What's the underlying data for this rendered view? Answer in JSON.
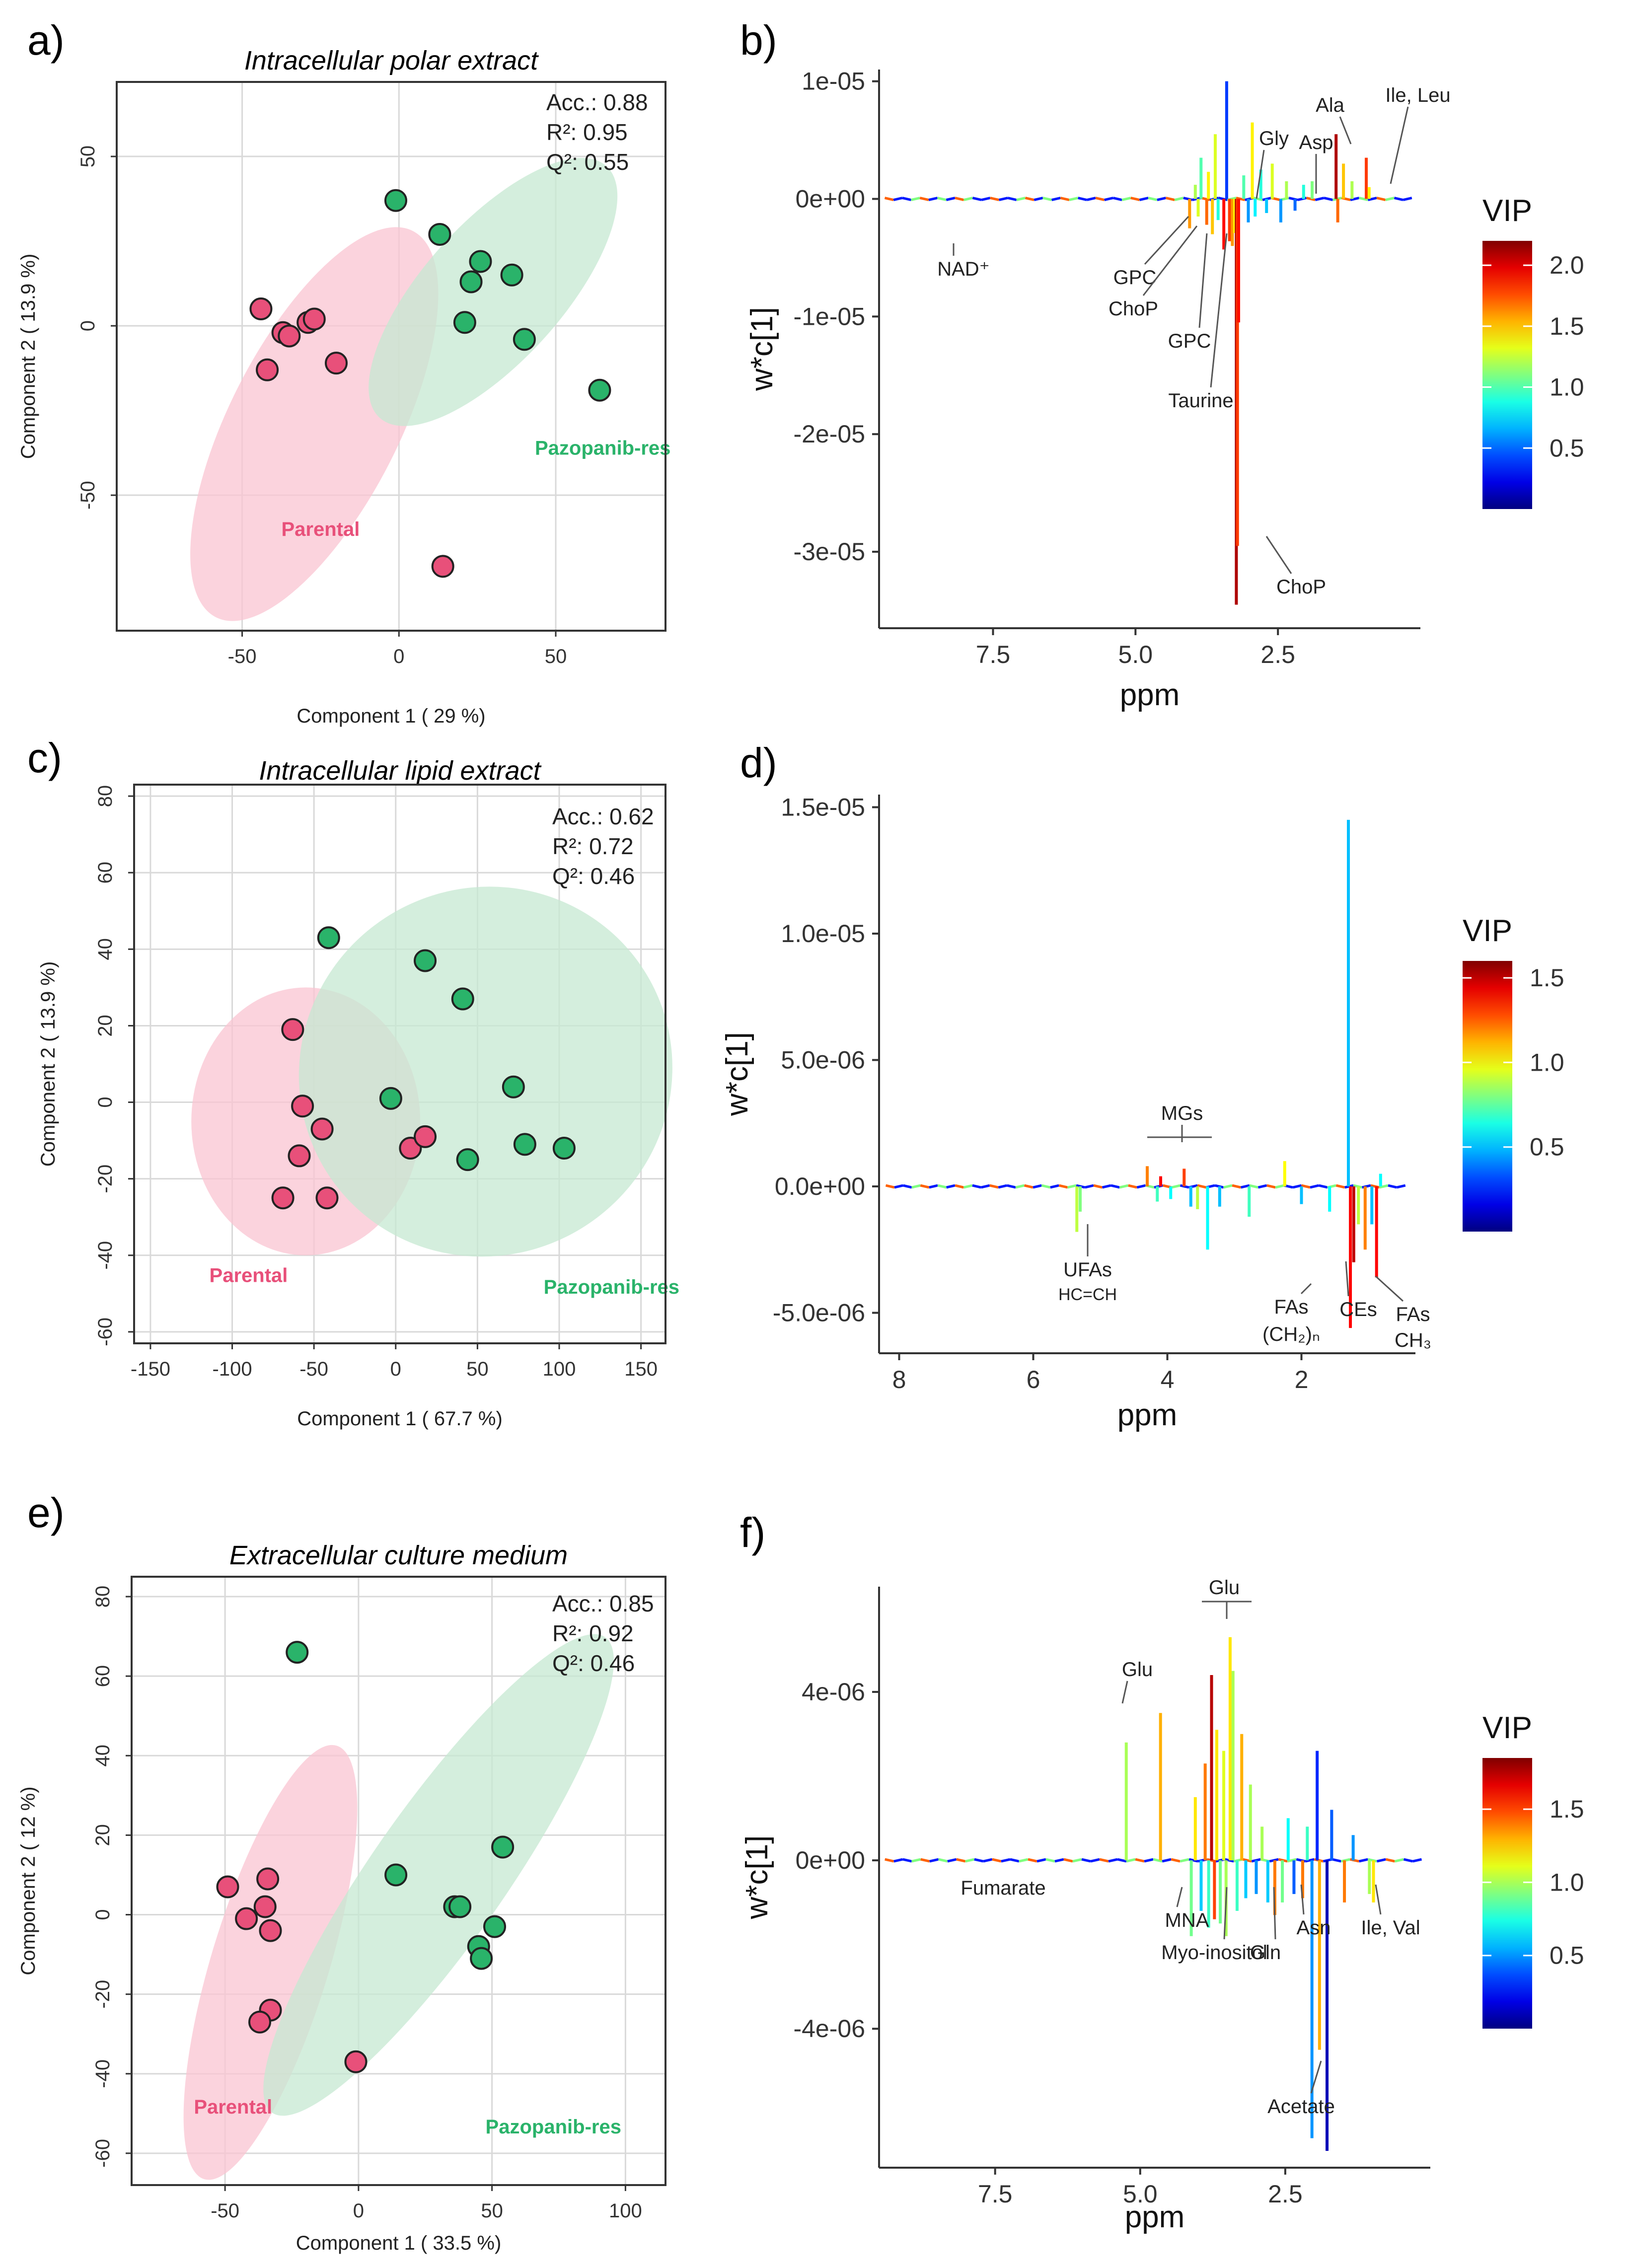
{
  "colors": {
    "parental": "#e8507a",
    "parental_ellipse": "#f9c4d2",
    "pazo": "#2ab36a",
    "pazo_ellipse": "#c6e8d2",
    "grid": "#d9d9d9"
  },
  "chart_data": [
    {
      "panel": "a)",
      "type": "scatter",
      "title": "Intracellular polar extract",
      "xlabel": "Component 1 ( 29 %)",
      "ylabel": "Component 2 ( 13.9 %)",
      "xlim": [
        -90,
        85
      ],
      "ylim": [
        -90,
        72
      ],
      "xticks": [
        -50,
        0,
        50
      ],
      "yticks": [
        -50,
        0,
        50
      ],
      "stats": [
        "Acc.: 0.88",
        "R²: 0.95",
        "Q²: 0.55"
      ],
      "groups": [
        {
          "name": "Parental",
          "label_at": [
            -25,
            -62
          ],
          "ellipse": {
            "cx": -27,
            "cy": -29,
            "rx": 27,
            "ry": 64,
            "angle_deg": 27
          },
          "points": [
            [
              -44,
              5
            ],
            [
              -37,
              -2
            ],
            [
              -35,
              -3
            ],
            [
              -29,
              1
            ],
            [
              -27,
              2
            ],
            [
              -20,
              -11
            ],
            [
              -42,
              -13
            ],
            [
              14,
              -71
            ]
          ]
        },
        {
          "name": "Pazopanib-res",
          "label_at": [
            65,
            -38
          ],
          "ellipse": {
            "cx": 30,
            "cy": 10,
            "rx": 22,
            "ry": 50,
            "angle_deg": 42
          },
          "points": [
            [
              -1,
              37
            ],
            [
              13,
              27
            ],
            [
              26,
              19
            ],
            [
              36,
              15
            ],
            [
              23,
              13
            ],
            [
              21,
              1
            ],
            [
              40,
              -4
            ],
            [
              64,
              -19
            ]
          ]
        }
      ]
    },
    {
      "panel": "b)",
      "type": "line",
      "xlabel": "ppm",
      "ylabel": "w*c[1]",
      "xlim": [
        9.5,
        0.0
      ],
      "ylim": [
        -3.65e-05,
        1.1e-05
      ],
      "xticks": [
        7.5,
        5.0,
        2.5
      ],
      "xtick_labels": [
        "7.5",
        "5.0",
        "2.5"
      ],
      "yticks": [
        1e-05,
        0,
        -1e-05,
        -2e-05,
        -3e-05
      ],
      "ytick_labels": [
        "1e-05",
        "0e+00",
        "-1e-05",
        "-2e-05",
        "-3e-05"
      ],
      "colorbar": {
        "title": "VIP",
        "max": 2.2,
        "ticks": [
          2.0,
          1.5,
          1.0,
          0.5
        ],
        "tick_labels": [
          "2.0",
          "1.5",
          "1.0",
          "0.5"
        ]
      },
      "peaks": [
        {
          "x": 4.05,
          "y": -2.5e-06,
          "v": 1.6
        },
        {
          "x": 3.95,
          "y": 1.2e-06,
          "v": 1.2
        },
        {
          "x": 3.9,
          "y": -1.5e-06,
          "v": 1.3
        },
        {
          "x": 3.85,
          "y": 3.5e-06,
          "v": 1.0
        },
        {
          "x": 3.75,
          "y": -2.2e-06,
          "v": 1.7
        },
        {
          "x": 3.72,
          "y": 2.3e-06,
          "v": 1.4
        },
        {
          "x": 3.65,
          "y": -3e-06,
          "v": 1.5
        },
        {
          "x": 3.6,
          "y": 5.5e-06,
          "v": 1.3
        },
        {
          "x": 3.55,
          "y": -1.8e-06,
          "v": 0.9
        },
        {
          "x": 3.45,
          "y": -4.3e-06,
          "v": 1.9
        },
        {
          "x": 3.4,
          "y": 1e-05,
          "v": 0.4
        },
        {
          "x": 3.35,
          "y": -3.6e-06,
          "v": 1.8
        },
        {
          "x": 3.3,
          "y": -4e-06,
          "v": 1.6
        },
        {
          "x": 3.26,
          "y": -2.9e-06,
          "v": 1.4
        },
        {
          "x": 3.23,
          "y": -3.45e-05,
          "v": 2.1
        },
        {
          "x": 3.21,
          "y": -2.95e-05,
          "v": 1.8
        },
        {
          "x": 3.19,
          "y": -1.05e-05,
          "v": 1.9
        },
        {
          "x": 3.1,
          "y": 2e-06,
          "v": 1.0
        },
        {
          "x": 3.02,
          "y": -2e-06,
          "v": 0.6
        },
        {
          "x": 2.95,
          "y": 6.5e-06,
          "v": 1.4
        },
        {
          "x": 2.9,
          "y": -1.5e-06,
          "v": 0.8
        },
        {
          "x": 2.8,
          "y": 2.5e-06,
          "v": 0.9
        },
        {
          "x": 2.7,
          "y": -1.2e-06,
          "v": 0.7
        },
        {
          "x": 2.6,
          "y": 3e-06,
          "v": 1.3
        },
        {
          "x": 2.45,
          "y": -2e-06,
          "v": 0.6
        },
        {
          "x": 2.35,
          "y": 1.5e-06,
          "v": 1.2
        },
        {
          "x": 2.2,
          "y": -1e-06,
          "v": 0.5
        },
        {
          "x": 2.05,
          "y": 1.2e-06,
          "v": 0.9
        },
        {
          "x": 1.9,
          "y": 1.5e-06,
          "v": 1.1
        },
        {
          "x": 1.48,
          "y": 5.5e-06,
          "v": 2.1
        },
        {
          "x": 1.45,
          "y": -2e-06,
          "v": 1.7
        },
        {
          "x": 1.35,
          "y": 3e-06,
          "v": 1.5
        },
        {
          "x": 1.2,
          "y": 1.5e-06,
          "v": 1.2
        },
        {
          "x": 0.95,
          "y": 3.5e-06,
          "v": 1.8
        },
        {
          "x": 0.9,
          "y": 1e-06,
          "v": 1.4
        }
      ],
      "annotations": [
        {
          "text": "NAD⁺",
          "x": 8.9,
          "y": -5e-07
        },
        {
          "text": "GPC",
          "x": 3.6,
          "y": -1.5e-06
        },
        {
          "text": "ChoP",
          "x": 3.45,
          "y": -3e-06
        },
        {
          "text": "GPC",
          "x": 3.35,
          "y": -3.6e-06
        },
        {
          "text": "Taurine",
          "x": 3.27,
          "y": -3e-06
        },
        {
          "text": "ChoP",
          "x": 3.2,
          "y": -2.9e-05
        },
        {
          "text": "Gly",
          "x": 3.55,
          "y": 5.5e-06
        },
        {
          "text": "Asp",
          "x": 2.7,
          "y": 3.5e-06
        },
        {
          "text": "Ala",
          "x": 1.48,
          "y": 5.5e-06
        },
        {
          "text": "Ile, Leu",
          "x": 0.95,
          "y": 3.5e-06
        }
      ]
    },
    {
      "panel": "c)",
      "type": "scatter",
      "title": "Intracellular lipid extract",
      "xlabel": "Component 1 ( 67.7 %)",
      "ylabel": "Component 2 ( 13.9 %)",
      "xlim": [
        -160,
        165
      ],
      "ylim": [
        -63,
        83
      ],
      "xticks": [
        -150,
        -100,
        -50,
        0,
        50,
        100,
        150
      ],
      "yticks": [
        -60,
        -40,
        -20,
        0,
        20,
        40,
        60,
        80
      ],
      "stats": [
        "Acc.: 0.62",
        "R²: 0.72",
        "Q²: 0.46"
      ],
      "groups": [
        {
          "name": "Parental",
          "label_at": [
            -90,
            -47
          ],
          "ellipse": {
            "cx": -55,
            "cy": -5,
            "rx": 70,
            "ry": 35,
            "angle_deg": 0
          },
          "points": [
            [
              -63,
              19
            ],
            [
              -57,
              -1
            ],
            [
              -45,
              -7
            ],
            [
              -59,
              -14
            ],
            [
              -69,
              -25
            ],
            [
              -42,
              -25
            ],
            [
              9,
              -12
            ],
            [
              18,
              -9
            ]
          ]
        },
        {
          "name": "Pazopanib-res",
          "label_at": [
            132,
            -50
          ],
          "ellipse": {
            "cx": 55,
            "cy": 8,
            "rx": 115,
            "ry": 48,
            "angle_deg": -33
          },
          "points": [
            [
              -41,
              43
            ],
            [
              18,
              37
            ],
            [
              41,
              27
            ],
            [
              72,
              4
            ],
            [
              -3,
              1
            ],
            [
              79,
              -11
            ],
            [
              103,
              -12
            ],
            [
              44,
              -15
            ]
          ]
        }
      ]
    },
    {
      "panel": "d)",
      "type": "line",
      "xlabel": "ppm",
      "ylabel": "w*c[1]",
      "xlim": [
        8.3,
        0.3
      ],
      "ylim": [
        -6.6e-06,
        1.55e-05
      ],
      "xticks": [
        8,
        6,
        4,
        2
      ],
      "xtick_labels": [
        "8",
        "6",
        "4",
        "2"
      ],
      "yticks": [
        1.5e-05,
        1e-05,
        5e-06,
        0,
        -5e-06
      ],
      "ytick_labels": [
        "1.5e-05",
        "1.0e-05",
        "5.0e-06",
        "0.0e+00",
        "-5.0e-06"
      ],
      "colorbar": {
        "title": "VIP",
        "max": 1.6,
        "ticks": [
          1.5,
          1.0,
          0.5
        ],
        "tick_labels": [
          "1.5",
          "1.0",
          "0.5"
        ]
      },
      "peaks": [
        {
          "x": 5.35,
          "y": -1.8e-06,
          "v": 0.9
        },
        {
          "x": 5.3,
          "y": -1e-06,
          "v": 0.8
        },
        {
          "x": 4.3,
          "y": 8e-07,
          "v": 1.2
        },
        {
          "x": 4.15,
          "y": -6e-07,
          "v": 0.7
        },
        {
          "x": 4.1,
          "y": 4e-07,
          "v": 1.4
        },
        {
          "x": 3.95,
          "y": -5e-07,
          "v": 0.6
        },
        {
          "x": 3.75,
          "y": 7e-07,
          "v": 1.3
        },
        {
          "x": 3.65,
          "y": -8e-07,
          "v": 0.5
        },
        {
          "x": 3.55,
          "y": -9e-07,
          "v": 0.9
        },
        {
          "x": 3.4,
          "y": -2.5e-06,
          "v": 0.6
        },
        {
          "x": 3.22,
          "y": -8e-07,
          "v": 0.5
        },
        {
          "x": 2.78,
          "y": -1.2e-06,
          "v": 0.7
        },
        {
          "x": 2.25,
          "y": 1e-06,
          "v": 1.0
        },
        {
          "x": 2.0,
          "y": -7e-07,
          "v": 0.5
        },
        {
          "x": 1.58,
          "y": -1e-06,
          "v": 0.6
        },
        {
          "x": 1.3,
          "y": 1.45e-05,
          "v": 0.5
        },
        {
          "x": 1.27,
          "y": -5.6e-06,
          "v": 1.4
        },
        {
          "x": 1.22,
          "y": -3e-06,
          "v": 1.5
        },
        {
          "x": 1.15,
          "y": -1.5e-06,
          "v": 0.9
        },
        {
          "x": 1.05,
          "y": -2.5e-06,
          "v": 1.2
        },
        {
          "x": 0.95,
          "y": -1.5e-06,
          "v": 0.5
        },
        {
          "x": 0.88,
          "y": -3.6e-06,
          "v": 1.4
        },
        {
          "x": 0.82,
          "y": 5e-07,
          "v": 0.6
        }
      ],
      "annotations": [
        {
          "text": "MGs",
          "x": 3.9,
          "y": 1.2e-06
        },
        {
          "text": "UFAs",
          "x": 5.35,
          "y": -1.8e-06
        },
        {
          "text": "HC=CH",
          "x": 5.35,
          "y": -1.8e-06
        },
        {
          "text": "FAs",
          "x": 1.27,
          "y": -5.6e-06
        },
        {
          "text": "(CH₂)ₙ",
          "x": 1.27,
          "y": -5.6e-06
        },
        {
          "text": "CEs",
          "x": 1.05,
          "y": -2.5e-06
        },
        {
          "text": "FAs",
          "x": 0.88,
          "y": -3.6e-06
        },
        {
          "text": "CH₃",
          "x": 0.88,
          "y": -3.6e-06
        }
      ]
    },
    {
      "panel": "e)",
      "type": "scatter",
      "title": "Extracellular culture medium",
      "xlabel": "Component 1 ( 33.5 %)",
      "ylabel": "Component 2 ( 12 %)",
      "xlim": [
        -85,
        115
      ],
      "ylim": [
        -68,
        85
      ],
      "xticks": [
        -50,
        0,
        50,
        100
      ],
      "yticks": [
        -60,
        -40,
        -20,
        0,
        20,
        40,
        60,
        80
      ],
      "stats": [
        "Acc.: 0.85",
        "R²: 0.92",
        "Q²: 0.46"
      ],
      "groups": [
        {
          "name": "Parental",
          "label_at": [
            -47,
            -50
          ],
          "ellipse": {
            "cx": -33,
            "cy": -12,
            "rx": 22,
            "ry": 57,
            "angle_deg": 17
          },
          "points": [
            [
              -49,
              7
            ],
            [
              -42,
              -1
            ],
            [
              -34,
              9
            ],
            [
              -35,
              2
            ],
            [
              -33,
              -4
            ],
            [
              -33,
              -24
            ],
            [
              -37,
              -27
            ],
            [
              -1,
              -37
            ]
          ]
        },
        {
          "name": "Pazopanib-res",
          "label_at": [
            73,
            -55
          ],
          "ellipse": {
            "cx": 30,
            "cy": 10,
            "rx": 25,
            "ry": 73,
            "angle_deg": 35
          },
          "points": [
            [
              -23,
              66
            ],
            [
              14,
              10
            ],
            [
              54,
              17
            ],
            [
              36,
              2
            ],
            [
              38,
              2
            ],
            [
              51,
              -3
            ],
            [
              45,
              -8
            ],
            [
              46,
              -11
            ]
          ]
        }
      ]
    },
    {
      "panel": "f)",
      "type": "line",
      "xlabel": "ppm",
      "ylabel": "w*c[1]",
      "xlim": [
        9.5,
        0.0
      ],
      "ylim": [
        -7.3e-06,
        6.5e-06
      ],
      "xticks": [
        7.5,
        5.0,
        2.5
      ],
      "xtick_labels": [
        "7.5",
        "5.0",
        "2.5"
      ],
      "yticks": [
        4e-06,
        0,
        -4e-06
      ],
      "ytick_labels": [
        "4e-06",
        "0e+00",
        "-4e-06"
      ],
      "colorbar": {
        "title": "VIP",
        "max": 1.85,
        "ticks": [
          1.5,
          1.0,
          0.5
        ],
        "tick_labels": [
          "1.5",
          "1.0",
          "0.5"
        ]
      },
      "peaks": [
        {
          "x": 5.24,
          "y": 2.8e-06,
          "v": 1.0
        },
        {
          "x": 4.65,
          "y": 3.5e-06,
          "v": 1.3
        },
        {
          "x": 4.12,
          "y": -1.8e-06,
          "v": 0.9
        },
        {
          "x": 4.05,
          "y": 1.5e-06,
          "v": 1.2
        },
        {
          "x": 3.95,
          "y": -1.2e-06,
          "v": 0.6
        },
        {
          "x": 3.88,
          "y": 2.3e-06,
          "v": 1.4
        },
        {
          "x": 3.82,
          "y": -1.6e-06,
          "v": 0.8
        },
        {
          "x": 3.77,
          "y": 4.4e-06,
          "v": 1.75
        },
        {
          "x": 3.72,
          "y": -1.4e-06,
          "v": 1.5
        },
        {
          "x": 3.68,
          "y": 3.1e-06,
          "v": 1.2
        },
        {
          "x": 3.62,
          "y": -1.5e-06,
          "v": 0.9
        },
        {
          "x": 3.56,
          "y": 2.6e-06,
          "v": 1.1
        },
        {
          "x": 3.52,
          "y": -1.8e-06,
          "v": 1.0
        },
        {
          "x": 3.45,
          "y": 5.3e-06,
          "v": 1.2
        },
        {
          "x": 3.4,
          "y": 4.5e-06,
          "v": 1.0
        },
        {
          "x": 3.33,
          "y": -1.2e-06,
          "v": 0.8
        },
        {
          "x": 3.25,
          "y": 3e-06,
          "v": 1.3
        },
        {
          "x": 3.18,
          "y": -9e-07,
          "v": 0.6
        },
        {
          "x": 3.1,
          "y": 1.8e-06,
          "v": 1.0
        },
        {
          "x": 3.0,
          "y": -8e-07,
          "v": 0.5
        },
        {
          "x": 2.9,
          "y": 8e-07,
          "v": 1.0
        },
        {
          "x": 2.8,
          "y": -1e-06,
          "v": 0.6
        },
        {
          "x": 2.68,
          "y": -1.3e-06,
          "v": 1.4
        },
        {
          "x": 2.55,
          "y": -1e-06,
          "v": 0.9
        },
        {
          "x": 2.45,
          "y": 1e-06,
          "v": 0.7
        },
        {
          "x": 2.35,
          "y": -8e-07,
          "v": 0.4
        },
        {
          "x": 2.2,
          "y": -9e-07,
          "v": 1.4
        },
        {
          "x": 2.12,
          "y": 8e-07,
          "v": 0.8
        },
        {
          "x": 2.04,
          "y": -6.6e-06,
          "v": 0.5
        },
        {
          "x": 1.95,
          "y": 2.6e-06,
          "v": 0.3
        },
        {
          "x": 1.91,
          "y": -4.5e-06,
          "v": 1.3
        },
        {
          "x": 1.78,
          "y": -6.9e-06,
          "v": 0.1
        },
        {
          "x": 1.7,
          "y": 1.2e-06,
          "v": 0.4
        },
        {
          "x": 1.48,
          "y": -1e-06,
          "v": 1.4
        },
        {
          "x": 1.33,
          "y": 6e-07,
          "v": 0.5
        },
        {
          "x": 1.05,
          "y": -8e-07,
          "v": 1.0
        },
        {
          "x": 0.98,
          "y": -1e-06,
          "v": 1.2
        }
      ],
      "annotations": [
        {
          "text": "Glu",
          "x": 5.2,
          "y": 2.8e-06
        },
        {
          "text": "Glu",
          "x": 3.4,
          "y": 5.3e-06
        },
        {
          "text": "Fumarate",
          "x": 6.5,
          "y": -2e-07
        },
        {
          "text": "MNA",
          "x": 4.12,
          "y": -1.8e-06
        },
        {
          "text": "Myo-inositol",
          "x": 3.52,
          "y": -1.8e-06
        },
        {
          "text": "Gln",
          "x": 2.45,
          "y": -1e-06
        },
        {
          "text": "Asn",
          "x": 2.2,
          "y": -9e-07
        },
        {
          "text": "Ile, Val",
          "x": 1.0,
          "y": -1e-06
        },
        {
          "text": "Acetate",
          "x": 1.91,
          "y": -4.5e-06
        }
      ]
    }
  ]
}
